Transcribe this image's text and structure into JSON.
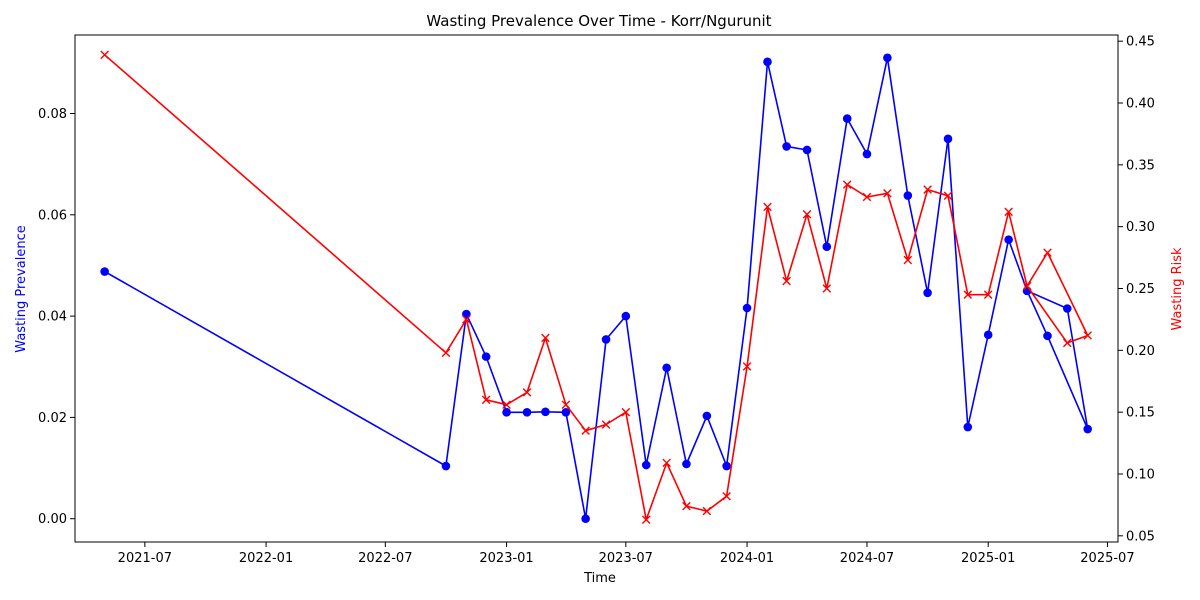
{
  "chart_data": {
    "type": "line",
    "title": "Wasting Prevalence Over Time - Korr/Ngurunit",
    "xlabel": "Time",
    "ylabel_left": "Wasting Prevalence",
    "ylabel_right": "Wasting Risk",
    "x_ticks": [
      "2021-07",
      "2022-01",
      "2022-07",
      "2023-01",
      "2023-07",
      "2024-01",
      "2024-07",
      "2025-01",
      "2025-07"
    ],
    "y_left_ticks": [
      "0.00",
      "0.02",
      "0.04",
      "0.06",
      "0.08"
    ],
    "y_right_ticks": [
      "0.05",
      "0.10",
      "0.15",
      "0.20",
      "0.25",
      "0.30",
      "0.35",
      "0.40",
      "0.45"
    ],
    "xlim": [
      "2021-03-17",
      "2025-07-17"
    ],
    "ylim_left": [
      -0.0046,
      0.0955
    ],
    "ylim_right": [
      0.045,
      0.455
    ],
    "grid": false,
    "legend": "none",
    "series": [
      {
        "axis": "left",
        "color": "#0000ff",
        "marker": "circle",
        "points": [
          [
            "2021-05-01",
            0.0488
          ],
          [
            "2022-10-01",
            0.0104
          ],
          [
            "2022-11-01",
            0.0404
          ],
          [
            "2022-12-01",
            0.032
          ],
          [
            "2023-01-01",
            0.021
          ],
          [
            "2023-02-01",
            0.021
          ],
          [
            "2023-03-01",
            0.0211
          ],
          [
            "2023-04-01",
            0.021
          ],
          [
            "2023-05-01",
            0.0
          ],
          [
            "2023-06-01",
            0.0354
          ],
          [
            "2023-07-01",
            0.04
          ],
          [
            "2023-08-01",
            0.0106
          ],
          [
            "2023-09-01",
            0.0298
          ],
          [
            "2023-10-01",
            0.0108
          ],
          [
            "2023-11-01",
            0.0203
          ],
          [
            "2023-12-01",
            0.0104
          ],
          [
            "2024-01-01",
            0.0416
          ],
          [
            "2024-02-01",
            0.0902
          ],
          [
            "2024-03-01",
            0.0735
          ],
          [
            "2024-04-01",
            0.0728
          ],
          [
            "2024-05-01",
            0.0537
          ],
          [
            "2024-06-01",
            0.079
          ],
          [
            "2024-07-01",
            0.072
          ],
          [
            "2024-08-01",
            0.091
          ],
          [
            "2024-09-01",
            0.0638
          ],
          [
            "2024-10-01",
            0.0446
          ],
          [
            "2024-11-01",
            0.075
          ],
          [
            "2024-12-01",
            0.0181
          ],
          [
            "2025-01-01",
            0.0363
          ],
          [
            "2025-02-01",
            0.0551
          ],
          [
            "2025-03-01",
            0.045
          ],
          [
            "2025-05-01",
            0.0415
          ],
          [
            "2025-06-01",
            0.0177
          ],
          [
            "2025-04-01",
            0.0361
          ],
          [
            "2025-03-01",
            0.045
          ]
        ]
      },
      {
        "axis": "right",
        "color": "#ff0000",
        "marker": "x",
        "points": [
          [
            "2021-05-01",
            0.439
          ],
          [
            "2022-10-01",
            0.198
          ],
          [
            "2022-11-01",
            0.225
          ],
          [
            "2022-12-01",
            0.16
          ],
          [
            "2023-01-01",
            0.156
          ],
          [
            "2023-02-01",
            0.166
          ],
          [
            "2023-03-01",
            0.21
          ],
          [
            "2023-04-01",
            0.156
          ],
          [
            "2023-05-01",
            0.135
          ],
          [
            "2023-06-01",
            0.14
          ],
          [
            "2023-07-01",
            0.15
          ],
          [
            "2023-08-01",
            0.063
          ],
          [
            "2023-09-01",
            0.109
          ],
          [
            "2023-10-01",
            0.074
          ],
          [
            "2023-11-01",
            0.07
          ],
          [
            "2023-12-01",
            0.082
          ],
          [
            "2024-01-01",
            0.187
          ],
          [
            "2024-02-01",
            0.316
          ],
          [
            "2024-03-01",
            0.256
          ],
          [
            "2024-04-01",
            0.31
          ],
          [
            "2024-05-01",
            0.25
          ],
          [
            "2024-06-01",
            0.334
          ],
          [
            "2024-07-01",
            0.324
          ],
          [
            "2024-08-01",
            0.327
          ],
          [
            "2024-09-01",
            0.273
          ],
          [
            "2024-10-01",
            0.33
          ],
          [
            "2024-11-01",
            0.325
          ],
          [
            "2024-12-01",
            0.245
          ],
          [
            "2025-01-01",
            0.245
          ],
          [
            "2025-02-01",
            0.312
          ],
          [
            "2025-03-01",
            0.252
          ],
          [
            "2025-04-01",
            0.279
          ],
          [
            "2025-06-01",
            0.212
          ],
          [
            "2025-05-01",
            0.206
          ],
          [
            "2025-03-01",
            0.252
          ]
        ]
      }
    ]
  }
}
